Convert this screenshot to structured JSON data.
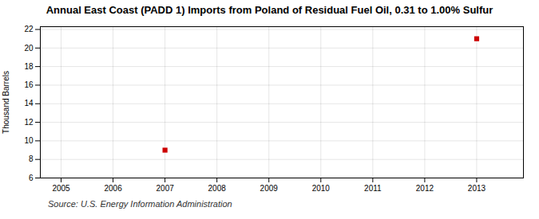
{
  "chart_data": {
    "type": "scatter",
    "title": "Annual East Coast (PADD 1) Imports from Poland of Residual Fuel Oil, 0.31 to 1.00% Sulfur",
    "ylabel": "Thousand Barrels",
    "source": "Source: U.S. Energy Information Administration",
    "x": [
      2007,
      2013
    ],
    "values": [
      9,
      21
    ],
    "color": "#cc0000",
    "marker": "square",
    "xlim": [
      2004.6,
      2013.9
    ],
    "ylim": [
      6,
      22.3
    ],
    "xticks": [
      2005,
      2006,
      2007,
      2008,
      2009,
      2010,
      2011,
      2012,
      2013
    ],
    "yticks": [
      6,
      8,
      10,
      12,
      14,
      16,
      18,
      20,
      22
    ],
    "grid": true
  }
}
